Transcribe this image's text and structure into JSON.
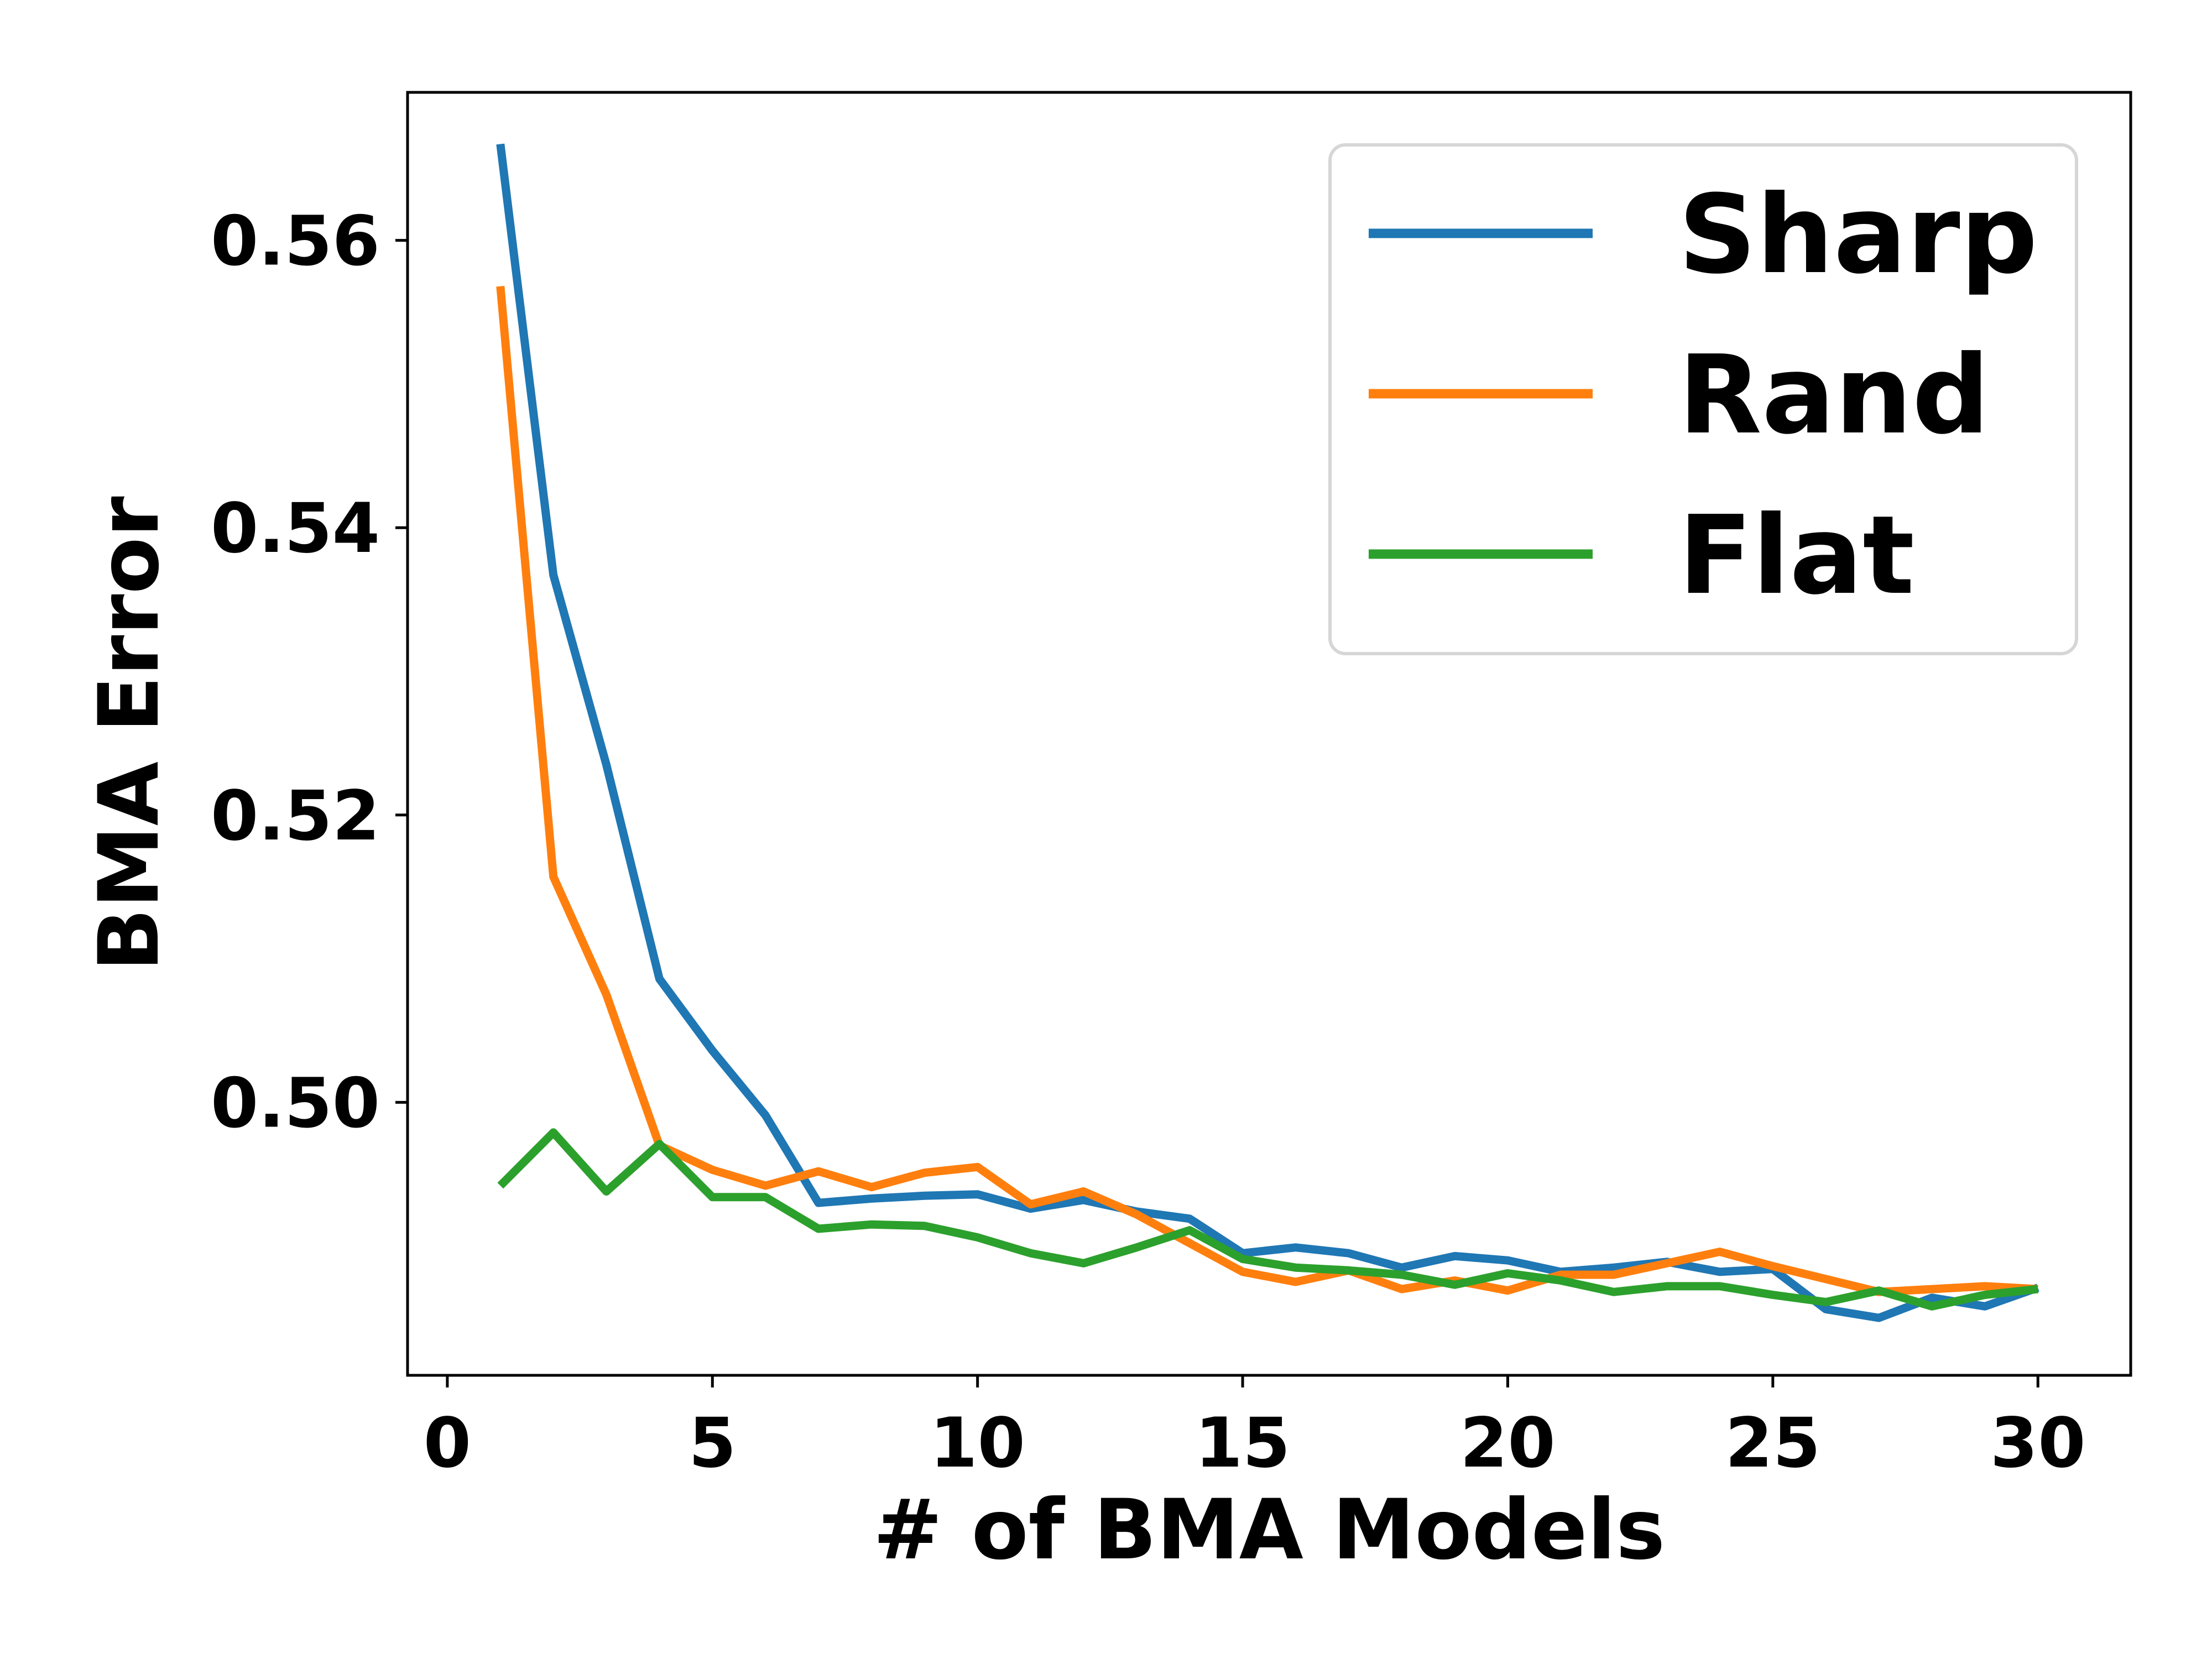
{
  "chart_data": {
    "type": "line",
    "xlabel": "# of BMA Models",
    "ylabel": "BMA Error",
    "xlim": [
      -0.75,
      31.75
    ],
    "ylim": [
      0.481,
      0.5703
    ],
    "xticks": [
      0,
      5,
      10,
      15,
      20,
      25,
      30
    ],
    "yticks": [
      0.5,
      0.52,
      0.54,
      0.56
    ],
    "xtick_labels": [
      "0",
      "5",
      "10",
      "15",
      "20",
      "25",
      "30"
    ],
    "ytick_labels": [
      "0.50",
      "0.52",
      "0.54",
      "0.56"
    ],
    "legend_position": "top-right",
    "grid": false,
    "x": [
      1,
      2,
      3,
      4,
      5,
      6,
      7,
      8,
      9,
      10,
      11,
      12,
      13,
      14,
      15,
      16,
      17,
      18,
      19,
      20,
      21,
      22,
      23,
      24,
      25,
      26,
      27,
      28,
      29,
      30
    ],
    "series": [
      {
        "name": "Sharp",
        "color": "#1f77b4",
        "values": [
          0.5667,
          0.5367,
          0.5235,
          0.5086,
          0.5036,
          0.4991,
          0.493,
          0.4933,
          0.4935,
          0.4936,
          0.4926,
          0.4932,
          0.4924,
          0.4919,
          0.4895,
          0.4899,
          0.4895,
          0.4885,
          0.4893,
          0.489,
          0.4882,
          0.4885,
          0.4889,
          0.4882,
          0.4884,
          0.4856,
          0.485,
          0.4864,
          0.4858,
          0.4871
        ]
      },
      {
        "name": "Rand",
        "color": "#ff7f0e",
        "values": [
          0.5568,
          0.5157,
          0.5075,
          0.497,
          0.4953,
          0.4942,
          0.4952,
          0.4941,
          0.4951,
          0.4955,
          0.4929,
          0.4938,
          0.4922,
          0.4902,
          0.4882,
          0.4875,
          0.4883,
          0.487,
          0.4876,
          0.4869,
          0.488,
          0.488,
          0.4888,
          0.4896,
          0.4886,
          0.4877,
          0.4868,
          0.487,
          0.4872,
          0.487
        ]
      },
      {
        "name": "Flat",
        "color": "#2ca02c",
        "values": [
          0.4942,
          0.4979,
          0.4938,
          0.4971,
          0.4934,
          0.4934,
          0.4912,
          0.4915,
          0.4914,
          0.4906,
          0.4895,
          0.4888,
          0.4899,
          0.4911,
          0.4891,
          0.4885,
          0.4883,
          0.488,
          0.4873,
          0.4881,
          0.4876,
          0.4868,
          0.4872,
          0.4872,
          0.4866,
          0.4861,
          0.4869,
          0.4858,
          0.4866,
          0.487
        ]
      }
    ]
  }
}
